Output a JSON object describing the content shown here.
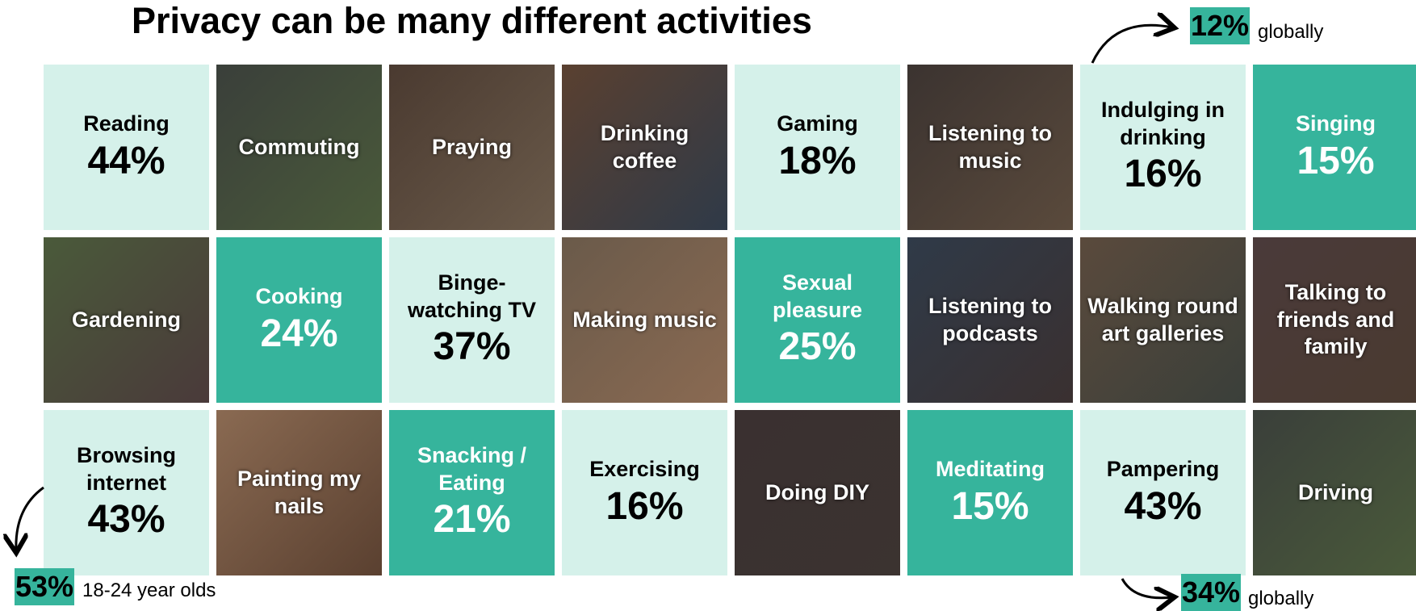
{
  "header": {
    "title": "Privacy can be many different activities"
  },
  "tiles": [
    {
      "label": "Reading",
      "value": "44%",
      "kind": "light"
    },
    {
      "label": "Commuting",
      "kind": "photo"
    },
    {
      "label": "Praying",
      "kind": "photo"
    },
    {
      "label": "Drinking coffee",
      "kind": "photo"
    },
    {
      "label": "Gaming",
      "value": "18%",
      "kind": "light"
    },
    {
      "label": "Listening to music",
      "kind": "photo"
    },
    {
      "label": "Indulging in drinking",
      "value": "16%",
      "kind": "light"
    },
    {
      "label": "Singing",
      "value": "15%",
      "kind": "dark"
    },
    {
      "label": "Gardening",
      "kind": "photo"
    },
    {
      "label": "Cooking",
      "value": "24%",
      "kind": "dark"
    },
    {
      "label": "Binge-watching TV",
      "value": "37%",
      "kind": "light"
    },
    {
      "label": "Making music",
      "kind": "photo"
    },
    {
      "label": "Sexual pleasure",
      "value": "25%",
      "kind": "dark"
    },
    {
      "label": "Listening to podcasts",
      "kind": "photo"
    },
    {
      "label": "Walking round art galleries",
      "kind": "photo"
    },
    {
      "label": "Talking to friends and family",
      "kind": "photo"
    },
    {
      "label": "Browsing internet",
      "value": "43%",
      "kind": "light"
    },
    {
      "label": "Painting my nails",
      "kind": "photo"
    },
    {
      "label": "Snacking / Eating",
      "value": "21%",
      "kind": "dark"
    },
    {
      "label": "Exercising",
      "value": "16%",
      "kind": "light"
    },
    {
      "label": "Doing DIY",
      "kind": "photo"
    },
    {
      "label": "Meditating",
      "value": "15%",
      "kind": "dark"
    },
    {
      "label": "Pampering",
      "value": "43%",
      "kind": "light"
    },
    {
      "label": "Driving",
      "kind": "photo"
    }
  ],
  "callouts": [
    {
      "value": "12%",
      "text": "globally"
    },
    {
      "value": "53%",
      "text": "18-24 year olds"
    },
    {
      "value": "34%",
      "text": "globally"
    }
  ]
}
